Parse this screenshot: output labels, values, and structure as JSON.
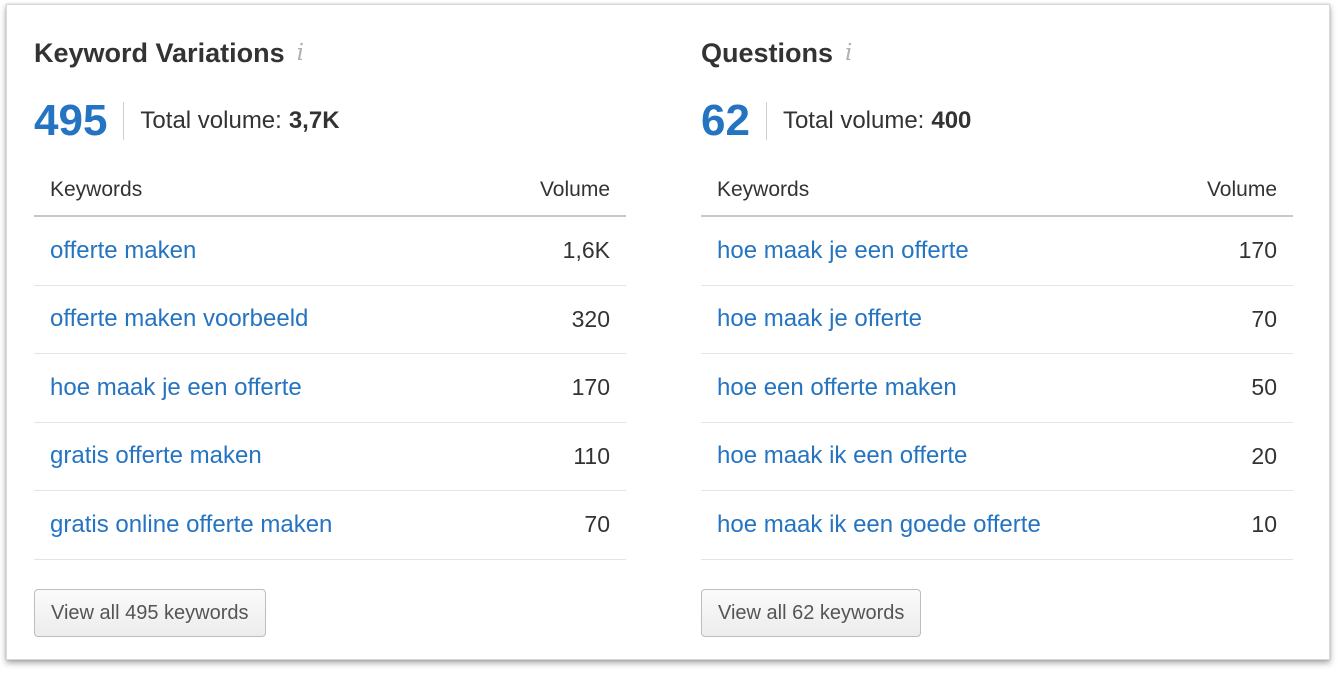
{
  "colors": {
    "accent": "#2574c2",
    "text": "#333333",
    "icon": "#b0b0b0"
  },
  "left": {
    "title": "Keyword Variations",
    "info_icon": "i",
    "count": "495",
    "total_label": "Total volume:",
    "total_value": "3,7K",
    "col_keywords": "Keywords",
    "col_volume": "Volume",
    "rows": [
      {
        "keyword": "offerte maken",
        "volume": "1,6K"
      },
      {
        "keyword": "offerte maken voorbeeld",
        "volume": "320"
      },
      {
        "keyword": "hoe maak je een offerte",
        "volume": "170"
      },
      {
        "keyword": "gratis offerte maken",
        "volume": "110"
      },
      {
        "keyword": "gratis online offerte maken",
        "volume": "70"
      }
    ],
    "view_all_label": "View all 495 keywords"
  },
  "right": {
    "title": "Questions",
    "info_icon": "i",
    "count": "62",
    "total_label": "Total volume:",
    "total_value": "400",
    "col_keywords": "Keywords",
    "col_volume": "Volume",
    "rows": [
      {
        "keyword": "hoe maak je een offerte",
        "volume": "170"
      },
      {
        "keyword": "hoe maak je offerte",
        "volume": "70"
      },
      {
        "keyword": "hoe een offerte maken",
        "volume": "50"
      },
      {
        "keyword": "hoe maak ik een offerte",
        "volume": "20"
      },
      {
        "keyword": "hoe maak ik een goede offerte",
        "volume": "10"
      }
    ],
    "view_all_label": "View all 62 keywords"
  }
}
